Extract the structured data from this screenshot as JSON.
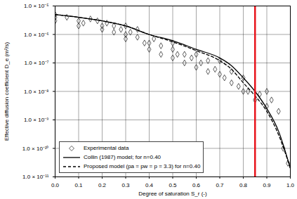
{
  "chart_data": {
    "type": "scatter",
    "xlabel": "Degree of saturation S_r (-)",
    "ylabel": "Effective diffusion coefficient D_e (m²/s)",
    "log": "y",
    "grid": true,
    "legend": "lower left",
    "xlim": [
      0,
      1
    ],
    "xticks": [
      {
        "value": 0,
        "label": "0.0"
      },
      {
        "value": 0.1,
        "label": "0.1"
      },
      {
        "value": 0.2,
        "label": "0.2"
      },
      {
        "value": 0.3,
        "label": "0.3"
      },
      {
        "value": 0.4,
        "label": "0.4"
      },
      {
        "value": 0.5,
        "label": "0.5"
      },
      {
        "value": 0.6,
        "label": "0.6"
      },
      {
        "value": 0.7,
        "label": "0.7"
      },
      {
        "value": 0.8,
        "label": "0.8"
      },
      {
        "value": 0.9,
        "label": "0.9"
      },
      {
        "value": 1,
        "label": "1.0"
      }
    ],
    "ylim": [
      1e-11,
      1e-05
    ],
    "yticks": [
      {
        "value": 1e-11,
        "label": "1.0 × 10⁻¹¹"
      },
      {
        "value": 1e-10,
        "label": "1.0 × 10⁻¹⁰"
      },
      {
        "value": 1e-09,
        "label": "1.0 × 10⁻⁹"
      },
      {
        "value": 1e-08,
        "label": "1.0 × 10⁻⁸"
      },
      {
        "value": 1e-07,
        "label": "1.0 × 10⁻⁷"
      },
      {
        "value": 1e-06,
        "label": "1.0 × 10⁻⁶"
      },
      {
        "value": 1e-05,
        "label": "1.0 × 10⁻⁵"
      }
    ],
    "reference_line": {
      "x": 0.85,
      "color": "#e8141c"
    },
    "series": [
      {
        "name": "Experimental data",
        "type": "scatter",
        "color": "#333333",
        "marker": "diamond",
        "x": [
          0.0,
          0.0,
          0.0,
          0.05,
          0.1,
          0.1,
          0.12,
          0.15,
          0.18,
          0.2,
          0.2,
          0.22,
          0.25,
          0.25,
          0.28,
          0.3,
          0.3,
          0.3,
          0.32,
          0.35,
          0.35,
          0.38,
          0.4,
          0.4,
          0.42,
          0.45,
          0.45,
          0.5,
          0.5,
          0.5,
          0.52,
          0.55,
          0.55,
          0.58,
          0.6,
          0.6,
          0.62,
          0.65,
          0.65,
          0.68,
          0.7,
          0.7,
          0.72,
          0.75,
          0.75,
          0.78,
          0.8,
          0.8,
          0.82,
          0.85,
          0.87,
          0.9,
          0.9,
          0.92,
          0.95,
          0.97,
          0.99
        ],
        "values": [
          5e-06,
          4e-06,
          3e-06,
          4e-06,
          3e-06,
          2e-06,
          2.5e-06,
          3.5e-06,
          3e-06,
          2e-06,
          1.5e-06,
          2.5e-06,
          2e-06,
          1.2e-06,
          1.5e-06,
          1e-06,
          2e-06,
          7e-07,
          1.2e-06,
          8e-07,
          1.5e-06,
          5e-07,
          5e-07,
          3e-07,
          7e-07,
          4e-07,
          2e-07,
          3e-07,
          1.5e-07,
          5e-07,
          2e-07,
          2e-07,
          1e-07,
          1.5e-07,
          7e-08,
          2e-07,
          1e-07,
          5e-08,
          1.2e-07,
          6e-08,
          4e-08,
          1.2e-07,
          3e-08,
          5e-08,
          2e-08,
          1.5e-08,
          1e-08,
          3e-08,
          1e-08,
          5e-09,
          8e-09,
          1e-08,
          3e-09,
          5e-09,
          2e-09,
          1e-10,
          3e-11
        ]
      },
      {
        "name": "Collin (1987) model; for n=0.40",
        "type": "line",
        "color": "#000000",
        "line_style": "solid",
        "x": [
          0,
          0.1,
          0.2,
          0.3,
          0.4,
          0.5,
          0.6,
          0.7,
          0.75,
          0.8,
          0.85,
          0.9,
          0.95,
          1.0
        ],
        "values": [
          5e-06,
          4e-06,
          3e-06,
          2e-06,
          1e-06,
          6e-07,
          3e-07,
          1.5e-07,
          8e-08,
          3e-08,
          1e-08,
          2.5e-09,
          4e-10,
          2e-11
        ]
      },
      {
        "name": "Proposed model (pa = pw = p = 3.3) for n=0.40",
        "type": "line",
        "color": "#000000",
        "line_style": "dashed",
        "x": [
          0,
          0.1,
          0.2,
          0.3,
          0.4,
          0.5,
          0.6,
          0.7,
          0.75,
          0.8,
          0.85,
          0.9,
          0.95,
          1.0
        ],
        "values": [
          5e-06,
          4e-06,
          3e-06,
          2e-06,
          1e-06,
          5.5e-07,
          2.7e-07,
          1.2e-07,
          6e-08,
          2e-08,
          7e-09,
          2e-09,
          3e-10,
          2e-11
        ]
      }
    ]
  }
}
